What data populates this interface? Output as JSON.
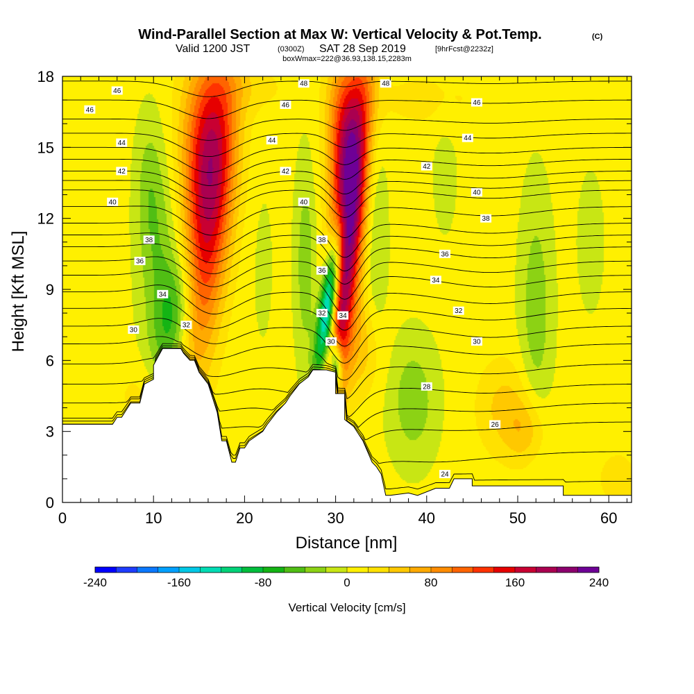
{
  "chart_data": {
    "type": "heatmap",
    "title": "Wind-Parallel Section at Max W: Vertical Velocity & Pot.Temp.",
    "title_mark": "(C)",
    "subtitle_valid": "Valid 1200 JST",
    "subtitle_utc": "(0300Z)",
    "subtitle_date": "SAT 28 Sep 2019",
    "subtitle_fcst": "[9hrFcst@2232z]",
    "subtitle_box": "boxWmax=222@36.93,138.15,2283m",
    "xlabel": "Distance [nm]",
    "ylabel": "Height [Kft MSL]",
    "xlim": [
      0,
      62.5
    ],
    "ylim": [
      0,
      18
    ],
    "x_ticks": [
      0,
      10,
      20,
      30,
      40,
      50,
      60
    ],
    "y_ticks": [
      0,
      3,
      6,
      9,
      12,
      15,
      18
    ],
    "colorbar": {
      "label": "Vertical Velocity [cm/s]",
      "range": [
        -240,
        240
      ],
      "step": 20,
      "ticks": [
        -240,
        -160,
        -80,
        0,
        80,
        160,
        240
      ],
      "colors": [
        "#0000ff",
        "#1e3cff",
        "#0a78ff",
        "#00a0ff",
        "#00c8e6",
        "#00dcb4",
        "#00d278",
        "#00be3c",
        "#14b414",
        "#50be14",
        "#8cd214",
        "#c8e614",
        "#fff000",
        "#ffe100",
        "#ffc800",
        "#ffaa00",
        "#ff8c00",
        "#ff6400",
        "#ff3200",
        "#e60000",
        "#c80032",
        "#aa0050",
        "#8c006e",
        "#6e0096"
      ]
    },
    "terrain_profile_kft": [
      [
        0,
        3.3
      ],
      [
        1.5,
        3.3
      ],
      [
        3,
        3.3
      ],
      [
        5.5,
        3.3
      ],
      [
        6,
        3.6
      ],
      [
        6.5,
        3.6
      ],
      [
        7,
        3.9
      ],
      [
        7.5,
        4.2
      ],
      [
        8.5,
        4.2
      ],
      [
        9,
        5
      ],
      [
        10,
        5.2
      ],
      [
        10,
        5.8
      ],
      [
        11,
        6.5
      ],
      [
        13,
        6.5
      ],
      [
        13.3,
        6.3
      ],
      [
        14,
        6
      ],
      [
        14.5,
        6
      ],
      [
        15,
        5.5
      ],
      [
        16,
        5
      ],
      [
        16.5,
        4.4
      ],
      [
        17,
        3.8
      ],
      [
        17.5,
        2.6
      ],
      [
        18,
        2.6
      ],
      [
        18.6,
        1.7
      ],
      [
        19,
        1.7
      ],
      [
        19.5,
        2.3
      ],
      [
        20,
        2.3
      ],
      [
        20.5,
        2.6
      ],
      [
        22,
        3
      ],
      [
        22.5,
        3.3
      ],
      [
        23.5,
        3.8
      ],
      [
        24.5,
        4.2
      ],
      [
        25,
        4.5
      ],
      [
        26,
        5
      ],
      [
        27,
        5.3
      ],
      [
        27.5,
        5.6
      ],
      [
        28.5,
        5.6
      ],
      [
        29,
        5.6
      ],
      [
        30,
        5.5
      ],
      [
        30,
        4.6
      ],
      [
        31,
        4.6
      ],
      [
        31,
        3.5
      ],
      [
        32,
        3.2
      ],
      [
        32.5,
        2.9
      ],
      [
        33,
        2.6
      ],
      [
        34,
        1.7
      ],
      [
        34.5,
        1.5
      ],
      [
        35,
        1.2
      ],
      [
        35.5,
        0.3
      ],
      [
        36,
        0.3
      ],
      [
        38,
        0.4
      ],
      [
        39,
        0.3
      ],
      [
        41,
        0.6
      ],
      [
        42.5,
        0.6
      ],
      [
        43,
        1
      ],
      [
        45,
        1
      ],
      [
        45,
        0.7
      ],
      [
        49,
        0.7
      ],
      [
        55,
        0.7
      ],
      [
        55,
        0.3
      ],
      [
        62.5,
        0.3
      ]
    ],
    "velocity_cells": [
      {
        "x": 16,
        "y": 12,
        "sx": 1.8,
        "sy": 4.5,
        "tilt": 0.25,
        "w": 150
      },
      {
        "x": 15.5,
        "y": 15.5,
        "sx": 2,
        "sy": 2.5,
        "tilt": 0,
        "w": 80
      },
      {
        "x": 31.2,
        "y": 11,
        "sx": 1.2,
        "sy": 5,
        "tilt": 0.25,
        "w": 225
      },
      {
        "x": 30.8,
        "y": 15.5,
        "sx": 1.3,
        "sy": 2.5,
        "tilt": 0,
        "w": 110
      },
      {
        "x": 33,
        "y": 6.5,
        "sx": 1.5,
        "sy": 1.5,
        "tilt": 0,
        "w": 40
      },
      {
        "x": 29.3,
        "y": 8.5,
        "sx": 0.7,
        "sy": 2.2,
        "tilt": 0.35,
        "w": -240
      },
      {
        "x": 30,
        "y": 5.8,
        "sx": 0.5,
        "sy": 0.8,
        "tilt": 0,
        "w": -160
      },
      {
        "x": 12.5,
        "y": 8,
        "sx": 1.5,
        "sy": 2,
        "tilt": 0.3,
        "w": -80
      },
      {
        "x": 10.5,
        "y": 10.5,
        "sx": 1.5,
        "sy": 3,
        "tilt": 0,
        "w": -40
      },
      {
        "x": 9.5,
        "y": 13.5,
        "sx": 1,
        "sy": 2,
        "tilt": 0,
        "w": -25
      },
      {
        "x": 26.7,
        "y": 10,
        "sx": 0.8,
        "sy": 3,
        "tilt": 0,
        "w": -40
      },
      {
        "x": 34.5,
        "y": 11,
        "sx": 0.8,
        "sy": 3,
        "tilt": 0,
        "w": -30
      },
      {
        "x": 38.5,
        "y": 4.3,
        "sx": 1.8,
        "sy": 1.8,
        "tilt": 0,
        "w": -40
      },
      {
        "x": 52,
        "y": 8,
        "sx": 1.2,
        "sy": 3.5,
        "tilt": 0,
        "w": -40
      },
      {
        "x": 42,
        "y": 14,
        "sx": 1,
        "sy": 2,
        "tilt": 0,
        "w": -15
      },
      {
        "x": 48.5,
        "y": 4,
        "sx": 2.2,
        "sy": 1.5,
        "tilt": 0,
        "w": 40
      },
      {
        "x": 51,
        "y": 3,
        "sx": 1.5,
        "sy": 1,
        "tilt": 0,
        "w": 40
      },
      {
        "x": 40,
        "y": 17,
        "sx": 5,
        "sy": 1,
        "tilt": 0,
        "w": 20
      },
      {
        "x": 21,
        "y": 17.5,
        "sx": 3,
        "sy": 0.8,
        "tilt": 0,
        "w": 20
      },
      {
        "x": 8.5,
        "y": 4.5,
        "sx": 2,
        "sy": 1,
        "tilt": 0,
        "w": 20
      },
      {
        "x": 61,
        "y": 1,
        "sx": 1.5,
        "sy": 0.8,
        "tilt": 0,
        "w": 30
      },
      {
        "x": 58,
        "y": 11,
        "sx": 1.5,
        "sy": 3,
        "tilt": 0,
        "w": -10
      },
      {
        "x": 22,
        "y": 10,
        "sx": 1,
        "sy": 3,
        "tilt": 0,
        "w": -10
      }
    ],
    "theta_levels": [
      24,
      25,
      26,
      27,
      28,
      29,
      30,
      31,
      32,
      33,
      34,
      35,
      36,
      37,
      38,
      39,
      40,
      41,
      42,
      43,
      44,
      45,
      46,
      47,
      48
    ],
    "theta_base_kft": {
      "24": 0.9,
      "26": 3.4,
      "28": 5.0,
      "30": 6.7,
      "32": 8.2,
      "34": 9.6,
      "36": 10.8,
      "38": 11.8,
      "40": 13.2,
      "42": 14.0,
      "44": 15.0,
      "46": 16.2,
      "48": 17.8
    },
    "contour_labels": [
      {
        "x": 6,
        "y": 17.4,
        "t": "46"
      },
      {
        "x": 26.5,
        "y": 17.7,
        "t": "48"
      },
      {
        "x": 35.5,
        "y": 17.7,
        "t": "48"
      },
      {
        "x": 3,
        "y": 16.6,
        "t": "46"
      },
      {
        "x": 24.5,
        "y": 16.8,
        "t": "46"
      },
      {
        "x": 45.5,
        "y": 16.9,
        "t": "46"
      },
      {
        "x": 6.5,
        "y": 15.2,
        "t": "44"
      },
      {
        "x": 23,
        "y": 15.3,
        "t": "44"
      },
      {
        "x": 44.5,
        "y": 15.4,
        "t": "44"
      },
      {
        "x": 6.5,
        "y": 14.0,
        "t": "42"
      },
      {
        "x": 24.5,
        "y": 14.0,
        "t": "42"
      },
      {
        "x": 40,
        "y": 14.2,
        "t": "42"
      },
      {
        "x": 5.5,
        "y": 12.7,
        "t": "40"
      },
      {
        "x": 26.5,
        "y": 12.7,
        "t": "40"
      },
      {
        "x": 45.5,
        "y": 13.1,
        "t": "40"
      },
      {
        "x": 9.5,
        "y": 11.1,
        "t": "38"
      },
      {
        "x": 28.5,
        "y": 11.1,
        "t": "38"
      },
      {
        "x": 46.5,
        "y": 12.0,
        "t": "38"
      },
      {
        "x": 8.5,
        "y": 10.2,
        "t": "36"
      },
      {
        "x": 28.5,
        "y": 9.8,
        "t": "36"
      },
      {
        "x": 42,
        "y": 10.5,
        "t": "36"
      },
      {
        "x": 11,
        "y": 8.8,
        "t": "34"
      },
      {
        "x": 30.8,
        "y": 7.9,
        "t": "34"
      },
      {
        "x": 41,
        "y": 9.4,
        "t": "34"
      },
      {
        "x": 13.6,
        "y": 7.5,
        "t": "32"
      },
      {
        "x": 28.5,
        "y": 8.0,
        "t": "32"
      },
      {
        "x": 43.5,
        "y": 8.1,
        "t": "32"
      },
      {
        "x": 7.8,
        "y": 7.3,
        "t": "30"
      },
      {
        "x": 29.5,
        "y": 6.8,
        "t": "30"
      },
      {
        "x": 45.5,
        "y": 6.8,
        "t": "30"
      },
      {
        "x": 40,
        "y": 4.9,
        "t": "28"
      },
      {
        "x": 47.5,
        "y": 3.3,
        "t": "26"
      },
      {
        "x": 42,
        "y": 1.2,
        "t": "24"
      }
    ]
  }
}
